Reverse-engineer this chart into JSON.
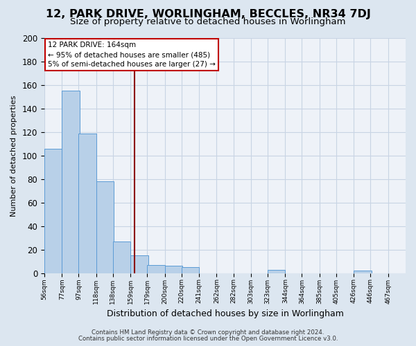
{
  "title": "12, PARK DRIVE, WORLINGHAM, BECCLES, NR34 7DJ",
  "subtitle": "Size of property relative to detached houses in Worlingham",
  "xlabel": "Distribution of detached houses by size in Worlingham",
  "ylabel": "Number of detached properties",
  "footer_line1": "Contains HM Land Registry data © Crown copyright and database right 2024.",
  "footer_line2": "Contains public sector information licensed under the Open Government Licence v3.0.",
  "annotation_line1": "12 PARK DRIVE: 164sqm",
  "annotation_line2": "← 95% of detached houses are smaller (485)",
  "annotation_line3": "5% of semi-detached houses are larger (27) →",
  "bar_edges": [
    56,
    77,
    97,
    118,
    138,
    159,
    179,
    200,
    220,
    241,
    262,
    282,
    303,
    323,
    344,
    364,
    385,
    405,
    426,
    446,
    467
  ],
  "bar_heights": [
    106,
    155,
    119,
    78,
    27,
    15,
    7,
    6,
    5,
    0,
    0,
    0,
    0,
    3,
    0,
    0,
    0,
    0,
    2,
    0,
    0
  ],
  "bar_color": "#b8d0e8",
  "bar_edge_color": "#5b9bd5",
  "vline_x": 164,
  "vline_color": "#8b0000",
  "bg_color": "#dce6f0",
  "plot_bg_color": "#eef2f8",
  "grid_color": "#c8d4e4",
  "ylim": [
    0,
    200
  ],
  "yticks": [
    0,
    20,
    40,
    60,
    80,
    100,
    120,
    140,
    160,
    180,
    200
  ],
  "annotation_box_color": "#ffffff",
  "annotation_box_edge": "#c00000",
  "title_fontsize": 11.5,
  "subtitle_fontsize": 9.5
}
